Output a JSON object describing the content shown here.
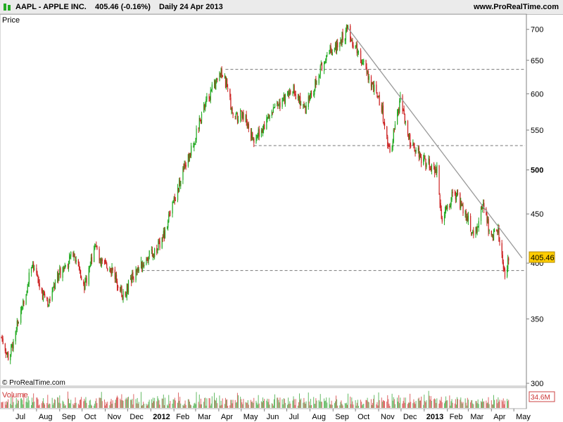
{
  "header": {
    "ticker": "AAPL - APPLE INC.",
    "quote": "405.46 (-0.16%)",
    "period": "Daily  24 Apr 2013",
    "site": "www.ProRealTime.com"
  },
  "price_panel": {
    "label": "Price",
    "watermark": "© ProRealTime.com"
  },
  "volume_panel": {
    "label": "Volume",
    "last_volume": "34.6M"
  },
  "last_price": "405.46",
  "colors": {
    "up": "#22aa22",
    "down": "#cc2222",
    "trendline": "#999999",
    "price_badge": "#ffcc00",
    "volume_badge_border": "#cc4444"
  },
  "chart_data": {
    "type": "candlestick",
    "title": "AAPL - APPLE INC.",
    "ylabel": "Price",
    "y_scale": "log",
    "ylim": [
      300,
      720
    ],
    "y_ticks": [
      300,
      350,
      400,
      450,
      500,
      550,
      600,
      650,
      700
    ],
    "x_months": [
      "Jul",
      "Aug",
      "Sep",
      "Oct",
      "Nov",
      "Dec",
      "2012",
      "Feb",
      "Mar",
      "Apr",
      "May",
      "Jun",
      "Jul",
      "Aug",
      "Sep",
      "Oct",
      "Nov",
      "Dec",
      "2013",
      "Feb",
      "Mar",
      "Apr",
      "May"
    ],
    "x_range": [
      "2011-06-15",
      "2013-05-15"
    ],
    "last_price": 405.46,
    "price_path": [
      {
        "date": "2011-06-15",
        "price": 335
      },
      {
        "date": "2011-06-25",
        "price": 318
      },
      {
        "date": "2011-07-08",
        "price": 350
      },
      {
        "date": "2011-07-18",
        "price": 375
      },
      {
        "date": "2011-07-26",
        "price": 402
      },
      {
        "date": "2011-08-08",
        "price": 372
      },
      {
        "date": "2011-08-18",
        "price": 365
      },
      {
        "date": "2011-08-30",
        "price": 388
      },
      {
        "date": "2011-09-20",
        "price": 410
      },
      {
        "date": "2011-10-05",
        "price": 378
      },
      {
        "date": "2011-10-18",
        "price": 420
      },
      {
        "date": "2011-10-25",
        "price": 400
      },
      {
        "date": "2011-11-10",
        "price": 395
      },
      {
        "date": "2011-11-25",
        "price": 370
      },
      {
        "date": "2011-12-10",
        "price": 390
      },
      {
        "date": "2011-12-28",
        "price": 405
      },
      {
        "date": "2012-01-15",
        "price": 420
      },
      {
        "date": "2012-01-25",
        "price": 445
      },
      {
        "date": "2012-02-10",
        "price": 490
      },
      {
        "date": "2012-02-28",
        "price": 535
      },
      {
        "date": "2012-03-15",
        "price": 590
      },
      {
        "date": "2012-04-05",
        "price": 630
      },
      {
        "date": "2012-04-12",
        "price": 610
      },
      {
        "date": "2012-04-20",
        "price": 570
      },
      {
        "date": "2012-05-05",
        "price": 570
      },
      {
        "date": "2012-05-18",
        "price": 535
      },
      {
        "date": "2012-06-05",
        "price": 565
      },
      {
        "date": "2012-06-20",
        "price": 585
      },
      {
        "date": "2012-07-10",
        "price": 605
      },
      {
        "date": "2012-07-25",
        "price": 575
      },
      {
        "date": "2012-08-10",
        "price": 620
      },
      {
        "date": "2012-08-25",
        "price": 665
      },
      {
        "date": "2012-09-05",
        "price": 670
      },
      {
        "date": "2012-09-20",
        "price": 700
      },
      {
        "date": "2012-10-05",
        "price": 660
      },
      {
        "date": "2012-10-20",
        "price": 620
      },
      {
        "date": "2012-11-05",
        "price": 580
      },
      {
        "date": "2012-11-16",
        "price": 520
      },
      {
        "date": "2012-11-30",
        "price": 590
      },
      {
        "date": "2012-12-10",
        "price": 540
      },
      {
        "date": "2012-12-28",
        "price": 515
      },
      {
        "date": "2013-01-18",
        "price": 500
      },
      {
        "date": "2013-01-25",
        "price": 442
      },
      {
        "date": "2013-02-10",
        "price": 475
      },
      {
        "date": "2013-02-28",
        "price": 445
      },
      {
        "date": "2013-03-08",
        "price": 425
      },
      {
        "date": "2013-03-20",
        "price": 460
      },
      {
        "date": "2013-04-01",
        "price": 425
      },
      {
        "date": "2013-04-10",
        "price": 432
      },
      {
        "date": "2013-04-19",
        "price": 390
      },
      {
        "date": "2013-04-24",
        "price": 405
      }
    ],
    "horizontal_lines": [
      {
        "price": 636,
        "from": "2012-04-10"
      },
      {
        "price": 530,
        "from": "2012-05-18"
      },
      {
        "price": 393,
        "from": "2011-12-20"
      }
    ],
    "trendline": [
      {
        "date": "2012-09-21",
        "price": 702
      },
      {
        "date": "2013-05-12",
        "price": 405
      }
    ],
    "volume": {
      "last": "34.6M"
    }
  }
}
